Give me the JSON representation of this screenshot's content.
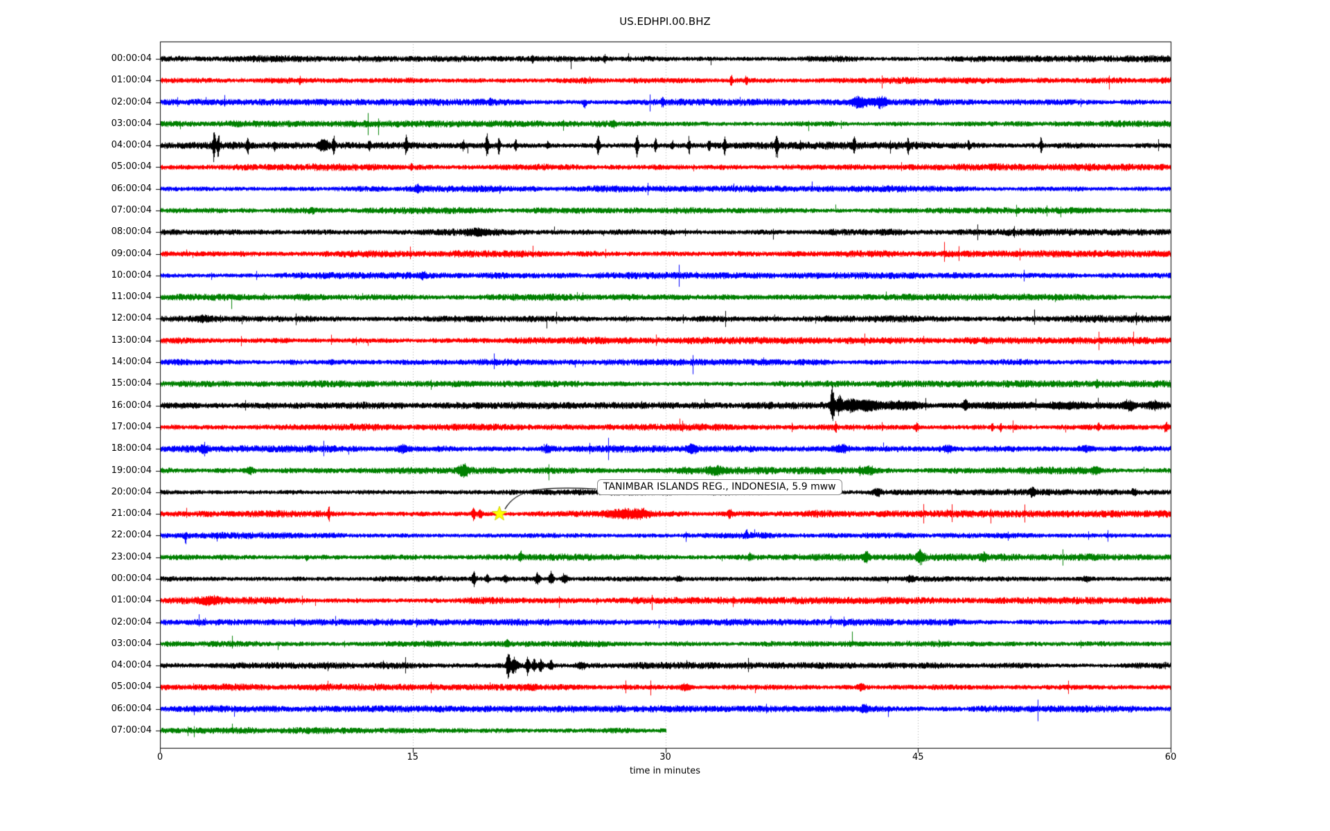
{
  "chart_data": {
    "type": "line",
    "title": "US.EDHPI.00.BHZ",
    "xlabel": "time in minutes",
    "xlim": [
      0,
      60
    ],
    "xticks": [
      0,
      15,
      30,
      45,
      60
    ],
    "grid_minutes": [
      15,
      30,
      45
    ],
    "grid_style": "dotted-gray-vertical",
    "legend": "none",
    "trace_color_cycle": [
      "#000000",
      "#ff0000",
      "#0000ff",
      "#008000"
    ],
    "annotation": {
      "text": "TANIMBAR ISLANDS REG., INDONESIA, 5.9 mww",
      "marker": "yellow-star",
      "marker_color": "#ffff00",
      "row_index": 21,
      "row_label": "21:00:04",
      "minute": 20.15
    },
    "rows": [
      {
        "label": "00:00:04",
        "color": "#000000",
        "base": 4.0,
        "e": [
          {
            "t": 22.1,
            "a": 5,
            "w": 0.06
          },
          {
            "t": 26.4,
            "a": 4,
            "w": 0.05
          }
        ]
      },
      {
        "label": "01:00:04",
        "color": "#ff0000",
        "base": 4.2,
        "e": [
          {
            "t": 8.3,
            "a": 4,
            "w": 0.05
          },
          {
            "t": 33.9,
            "a": 9,
            "w": 0.05
          },
          {
            "t": 34.8,
            "a": 5,
            "w": 0.05
          }
        ]
      },
      {
        "label": "02:00:04",
        "color": "#0000ff",
        "base": 4.0,
        "e": [
          {
            "t": 19.6,
            "a": 4,
            "w": 0.05
          },
          {
            "t": 25.2,
            "a": 8,
            "w": 0.08,
            "d": -1
          },
          {
            "t": 29.8,
            "a": 4,
            "w": 0.06
          },
          {
            "t": 41.5,
            "a": 6,
            "w": 0.35
          },
          {
            "t": 42.8,
            "a": 6,
            "w": 0.25
          }
        ]
      },
      {
        "label": "03:00:04",
        "color": "#008000",
        "base": 4.0,
        "e": [
          {
            "t": 26.9,
            "a": 4,
            "w": 0.1
          }
        ]
      },
      {
        "label": "04:00:04",
        "color": "#000000",
        "base": 4.5,
        "e": [
          {
            "t": 3.2,
            "a": 26,
            "w": 0.05
          },
          {
            "t": 3.45,
            "a": 15,
            "w": 0.05
          },
          {
            "t": 5.2,
            "a": 11,
            "w": 0.05
          },
          {
            "t": 6.8,
            "a": 7,
            "w": 0.05
          },
          {
            "t": 9.7,
            "a": 7,
            "w": 0.2
          },
          {
            "t": 10.3,
            "a": 13,
            "w": 0.05
          },
          {
            "t": 12.4,
            "a": 5,
            "w": 0.05
          },
          {
            "t": 14.6,
            "a": 14,
            "w": 0.05
          },
          {
            "t": 18.0,
            "a": 6,
            "w": 0.05
          },
          {
            "t": 19.4,
            "a": 16,
            "w": 0.06
          },
          {
            "t": 20.1,
            "a": 11,
            "w": 0.05
          },
          {
            "t": 21.1,
            "a": 8,
            "w": 0.05
          },
          {
            "t": 23.0,
            "a": 5,
            "w": 0.05
          },
          {
            "t": 26.0,
            "a": 14,
            "w": 0.06
          },
          {
            "t": 28.3,
            "a": 17,
            "w": 0.06
          },
          {
            "t": 29.4,
            "a": 9,
            "w": 0.05
          },
          {
            "t": 30.4,
            "a": 6,
            "w": 0.05
          },
          {
            "t": 31.4,
            "a": 12,
            "w": 0.05
          },
          {
            "t": 32.6,
            "a": 7,
            "w": 0.05
          },
          {
            "t": 33.5,
            "a": 11,
            "w": 0.05
          },
          {
            "t": 36.6,
            "a": 15,
            "w": 0.06
          },
          {
            "t": 38.0,
            "a": 5,
            "w": 0.05
          },
          {
            "t": 41.2,
            "a": 13,
            "w": 0.05
          },
          {
            "t": 44.4,
            "a": 10,
            "w": 0.05
          },
          {
            "t": 48.0,
            "a": 5,
            "w": 0.05
          },
          {
            "t": 52.3,
            "a": 12,
            "w": 0.05
          }
        ]
      },
      {
        "label": "05:00:04",
        "color": "#ff0000",
        "base": 4.2,
        "e": [
          {
            "t": 14.9,
            "a": 4,
            "w": 0.05
          }
        ]
      },
      {
        "label": "06:00:04",
        "color": "#0000ff",
        "base": 4.0,
        "e": [
          {
            "t": 15.3,
            "a": 4,
            "w": 0.1
          }
        ]
      },
      {
        "label": "07:00:04",
        "color": "#008000",
        "base": 4.0,
        "e": [
          {
            "t": 9.0,
            "a": 3,
            "w": 0.1
          }
        ]
      },
      {
        "label": "08:00:04",
        "color": "#000000",
        "base": 4.2,
        "e": [
          {
            "t": 19.0,
            "a": 3,
            "w": 0.5
          }
        ]
      },
      {
        "label": "09:00:04",
        "color": "#ff0000",
        "base": 4.2,
        "e": []
      },
      {
        "label": "10:00:04",
        "color": "#0000ff",
        "base": 4.0,
        "e": [
          {
            "t": 15.6,
            "a": 3,
            "w": 0.1
          }
        ]
      },
      {
        "label": "11:00:04",
        "color": "#008000",
        "base": 4.0,
        "e": []
      },
      {
        "label": "12:00:04",
        "color": "#000000",
        "base": 4.3,
        "e": [
          {
            "t": 2.5,
            "a": 3,
            "w": 0.3
          }
        ]
      },
      {
        "label": "13:00:04",
        "color": "#ff0000",
        "base": 4.2,
        "e": []
      },
      {
        "label": "14:00:04",
        "color": "#0000ff",
        "base": 4.0,
        "e": [
          {
            "t": 10.2,
            "a": 3,
            "w": 0.08
          }
        ]
      },
      {
        "label": "15:00:04",
        "color": "#008000",
        "base": 4.2,
        "e": [
          {
            "t": 55.6,
            "a": 4,
            "w": 0.06
          }
        ]
      },
      {
        "label": "16:00:04",
        "color": "#000000",
        "base": 4.3,
        "e": [
          {
            "t": 39.9,
            "a": 25,
            "w": 0.08
          },
          {
            "t": 40.3,
            "a": 12,
            "w": 0.15
          },
          {
            "t": 41.0,
            "a": 8,
            "w": 0.3
          },
          {
            "t": 42.0,
            "a": 6,
            "w": 0.4
          },
          {
            "t": 44.0,
            "a": 4,
            "w": 1.0
          },
          {
            "t": 47.8,
            "a": 6,
            "w": 0.1
          },
          {
            "t": 50.0,
            "a": 3,
            "w": 1.5
          },
          {
            "t": 54.0,
            "a": 3,
            "w": 1.0
          },
          {
            "t": 57.5,
            "a": 5,
            "w": 0.3
          },
          {
            "t": 59.0,
            "a": 4,
            "w": 0.3
          }
        ]
      },
      {
        "label": "17:00:04",
        "color": "#ff0000",
        "base": 4.2,
        "e": [
          {
            "t": 40.1,
            "a": 7,
            "w": 0.05
          },
          {
            "t": 44.9,
            "a": 5,
            "w": 0.1
          },
          {
            "t": 49.4,
            "a": 6,
            "w": 0.05
          },
          {
            "t": 49.9,
            "a": 5,
            "w": 0.05
          },
          {
            "t": 55.7,
            "a": 4,
            "w": 0.05
          },
          {
            "t": 59.7,
            "a": 6,
            "w": 0.08
          }
        ]
      },
      {
        "label": "18:00:04",
        "color": "#0000ff",
        "base": 4.3,
        "e": [
          {
            "t": 2.6,
            "a": 5,
            "w": 0.15
          },
          {
            "t": 14.4,
            "a": 4,
            "w": 0.2
          },
          {
            "t": 23.0,
            "a": 4,
            "w": 0.2
          },
          {
            "t": 31.6,
            "a": 4,
            "w": 0.2
          },
          {
            "t": 40.4,
            "a": 4,
            "w": 0.3
          },
          {
            "t": 46.8,
            "a": 4,
            "w": 0.2
          },
          {
            "t": 55.0,
            "a": 3,
            "w": 0.3
          }
        ]
      },
      {
        "label": "19:00:04",
        "color": "#008000",
        "base": 4.4,
        "e": [
          {
            "t": 5.3,
            "a": 4,
            "w": 0.2
          },
          {
            "t": 18.0,
            "a": 8,
            "w": 0.18
          },
          {
            "t": 33.0,
            "a": 4,
            "w": 0.3
          },
          {
            "t": 42.0,
            "a": 4,
            "w": 0.3
          },
          {
            "t": 55.5,
            "a": 4,
            "w": 0.2
          }
        ]
      },
      {
        "label": "20:00:04",
        "color": "#000000",
        "base": 3.8,
        "e": [
          {
            "t": 42.6,
            "a": 4,
            "w": 0.15
          },
          {
            "t": 51.8,
            "a": 5,
            "w": 0.12
          },
          {
            "t": 57.8,
            "a": 4,
            "w": 0.1
          }
        ]
      },
      {
        "label": "21:00:04",
        "color": "#ff0000",
        "base": 4.2,
        "e": [
          {
            "t": 10.0,
            "a": 10,
            "w": 0.05
          },
          {
            "t": 18.6,
            "a": 8,
            "w": 0.07
          },
          {
            "t": 19.0,
            "a": 5,
            "w": 0.1
          },
          {
            "t": 27.5,
            "a": 4,
            "w": 0.6
          },
          {
            "t": 28.6,
            "a": 4,
            "w": 0.3
          },
          {
            "t": 33.8,
            "a": 5,
            "w": 0.1
          }
        ]
      },
      {
        "label": "22:00:04",
        "color": "#0000ff",
        "base": 4.0,
        "e": [
          {
            "t": 1.5,
            "a": 18,
            "w": 0.04,
            "d": -1
          },
          {
            "t": 34.8,
            "a": 8,
            "w": 0.05,
            "d": 1
          }
        ]
      },
      {
        "label": "23:00:04",
        "color": "#008000",
        "base": 4.2,
        "e": [
          {
            "t": 8.7,
            "a": 7,
            "w": 0.05,
            "d": -1
          },
          {
            "t": 21.4,
            "a": 6,
            "w": 0.06
          },
          {
            "t": 35.0,
            "a": 4,
            "w": 0.08
          },
          {
            "t": 41.9,
            "a": 7,
            "w": 0.12
          },
          {
            "t": 45.1,
            "a": 8,
            "w": 0.15
          },
          {
            "t": 48.9,
            "a": 4,
            "w": 0.1
          }
        ]
      },
      {
        "label": "00:00:04",
        "color": "#000000",
        "base": 4.0,
        "e": [
          {
            "t": 18.6,
            "a": 9,
            "w": 0.08
          },
          {
            "t": 19.4,
            "a": 7,
            "w": 0.06
          },
          {
            "t": 20.5,
            "a": 4,
            "w": 0.1
          },
          {
            "t": 22.4,
            "a": 8,
            "w": 0.1
          },
          {
            "t": 23.2,
            "a": 9,
            "w": 0.1
          },
          {
            "t": 24.0,
            "a": 7,
            "w": 0.12
          },
          {
            "t": 30.8,
            "a": 4,
            "w": 0.1
          },
          {
            "t": 44.5,
            "a": 3,
            "w": 0.2
          },
          {
            "t": 55.0,
            "a": 3,
            "w": 0.2
          }
        ]
      },
      {
        "label": "01:00:04",
        "color": "#ff0000",
        "base": 4.2,
        "e": [
          {
            "t": 3.0,
            "a": 3,
            "w": 0.4
          }
        ]
      },
      {
        "label": "02:00:04",
        "color": "#0000ff",
        "base": 4.0,
        "e": []
      },
      {
        "label": "03:00:04",
        "color": "#008000",
        "base": 4.0,
        "e": [
          {
            "t": 20.6,
            "a": 5,
            "w": 0.1
          }
        ]
      },
      {
        "label": "04:00:04",
        "color": "#000000",
        "base": 4.0,
        "e": [
          {
            "t": 20.65,
            "a": 23,
            "w": 0.07
          },
          {
            "t": 21.0,
            "a": 10,
            "w": 0.15
          },
          {
            "t": 21.8,
            "a": 12,
            "w": 0.08
          },
          {
            "t": 22.2,
            "a": 9,
            "w": 0.08
          },
          {
            "t": 22.6,
            "a": 8,
            "w": 0.1
          },
          {
            "t": 23.2,
            "a": 6,
            "w": 0.1
          },
          {
            "t": 25.0,
            "a": 4,
            "w": 0.2
          }
        ]
      },
      {
        "label": "05:00:04",
        "color": "#ff0000",
        "base": 4.2,
        "e": [
          {
            "t": 31.2,
            "a": 4,
            "w": 0.2
          },
          {
            "t": 41.6,
            "a": 4,
            "w": 0.15
          }
        ]
      },
      {
        "label": "06:00:04",
        "color": "#0000ff",
        "base": 4.0,
        "e": [
          {
            "t": 41.8,
            "a": 4,
            "w": 0.15
          }
        ]
      },
      {
        "label": "07:00:04",
        "color": "#008000",
        "base": 4.0,
        "end": 30,
        "e": []
      }
    ]
  }
}
